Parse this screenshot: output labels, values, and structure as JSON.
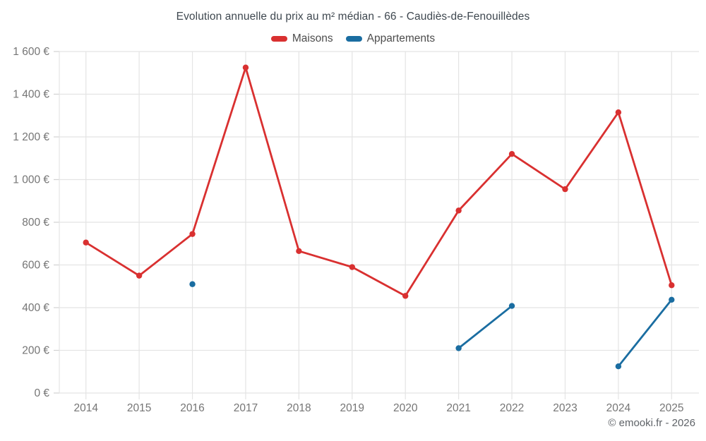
{
  "title": "Evolution annuelle du prix au m² médian - 66 - Caudiès-de-Fenouillèdes",
  "legend": [
    {
      "label": "Maisons",
      "color": "#d93030"
    },
    {
      "label": "Appartements",
      "color": "#1a6da1"
    }
  ],
  "attribution": "© emooki.fr - 2026",
  "colors": {
    "maisons": "#d93030",
    "appartements": "#1a6da1",
    "gridline": "#e4e4e4",
    "tick": "#d2d2d2",
    "tick_label": "#757575"
  },
  "chart_data": {
    "type": "line",
    "title": "Evolution annuelle du prix au m² médian - 66 - Caudiès-de-Fenouillèdes",
    "categories": [
      "2014",
      "2015",
      "2016",
      "2017",
      "2018",
      "2019",
      "2020",
      "2021",
      "2022",
      "2023",
      "2024",
      "2025"
    ],
    "series": [
      {
        "name": "Maisons",
        "color": "#d93030",
        "values": [
          705,
          550,
          745,
          1525,
          665,
          590,
          455,
          855,
          1120,
          955,
          1315,
          505
        ]
      },
      {
        "name": "Appartements",
        "color": "#1a6da1",
        "values": [
          null,
          null,
          510,
          null,
          null,
          null,
          null,
          210,
          408,
          null,
          125,
          437
        ]
      }
    ],
    "xlabel": "",
    "ylabel": "",
    "ylim": [
      0,
      1600
    ],
    "ytick_step": 200,
    "ytick_suffix": " €",
    "grid": true,
    "legend_position": "top"
  }
}
